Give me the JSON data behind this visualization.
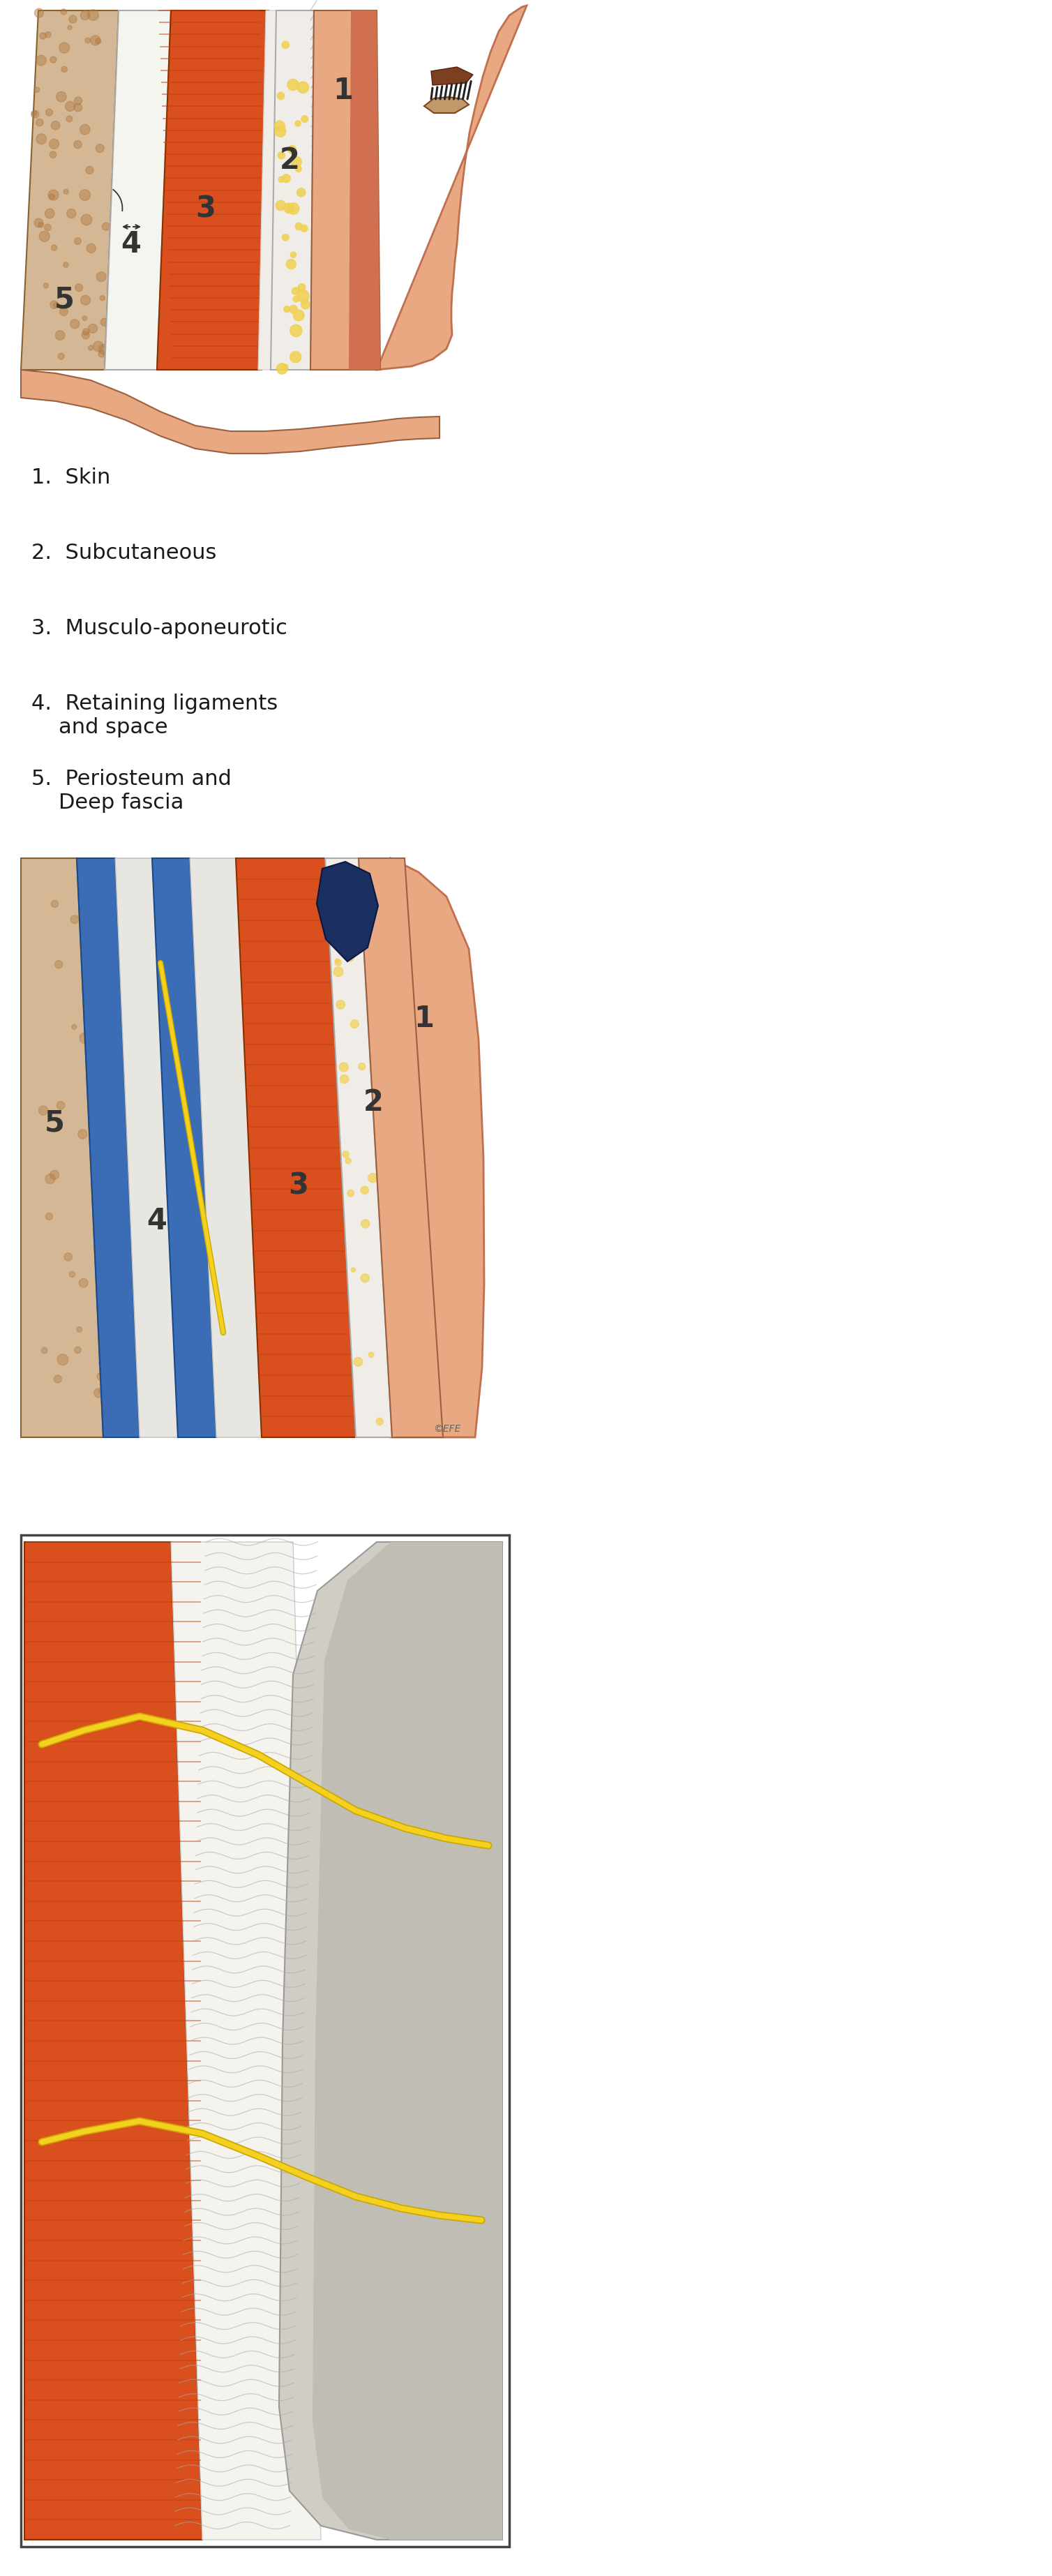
{
  "fig_width": 15.08,
  "fig_height": 36.92,
  "bg_color": "#ffffff",
  "legend_items": [
    "1.  Skin",
    "2.  Subcutaneous",
    "3.  Musculo-aponeurotic",
    "4.  Retaining ligaments\n    and space",
    "5.  Periosteum and\n    Deep fascia"
  ],
  "legend_fontsize": 22,
  "label_color": "#1a1a1a",
  "number_color": "#333333",
  "layer_colors": {
    "bone": "#d4b896",
    "bone_speckle": "#b07840",
    "muscle": "#d94f1e",
    "muscle_stripe": "#c04010",
    "layer4_white": "#f5f5f0",
    "layer4_blue": "#3a6db5",
    "layer4_blue_dark": "#1a4a8a",
    "subcutaneous": "#f0ede8",
    "skin": "#e8a882",
    "skin_dark": "#d07050",
    "nerve_yellow": "#f5d020",
    "nerve_outline": "#c8a800",
    "face_skin": "#e8a882",
    "face_outline": "#c07050",
    "outline_dark": "#8a6030",
    "outline_muscle": "#8a3000",
    "fascia_light": "#f5f3ee",
    "slab_right": "#d0cdc5",
    "slab_right_inner": "#c0bdb5",
    "inset_border": "#555555",
    "copyright": "#666666"
  }
}
